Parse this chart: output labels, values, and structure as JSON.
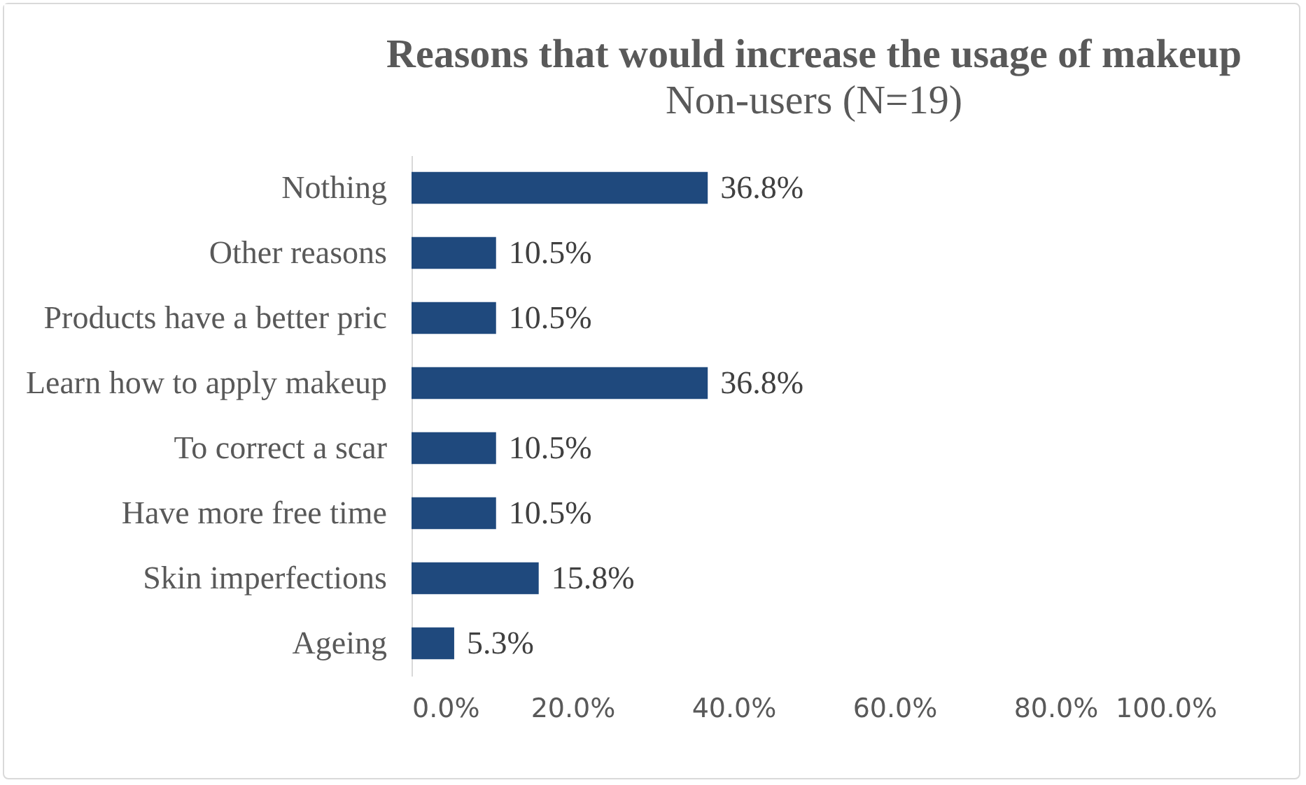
{
  "chart_data": {
    "type": "bar",
    "orientation": "horizontal",
    "title": "Reasons that would increase the usage of makeup",
    "subtitle": "Non-users (N=19)",
    "categories": [
      "Nothing",
      "Other reasons",
      "Products have a better pric",
      "Learn how to apply makeup",
      "To correct a scar",
      "Have more free time",
      "Skin imperfections",
      "Ageing"
    ],
    "values": [
      36.8,
      10.5,
      10.5,
      36.8,
      10.5,
      10.5,
      15.8,
      5.3
    ],
    "value_labels": [
      "36.8%",
      "10.5%",
      "10.5%",
      "36.8%",
      "10.5%",
      "10.5%",
      "15.8%",
      "5.3%"
    ],
    "color": "#1f497d",
    "xlim": [
      0,
      100
    ],
    "xticks": [
      {
        "value": 0,
        "label": "0.0%"
      },
      {
        "value": 20,
        "label": "20.0%"
      },
      {
        "value": 40,
        "label": "40.0%"
      },
      {
        "value": 60,
        "label": "60.0%"
      },
      {
        "value": 80,
        "label": "80.0%"
      },
      {
        "value": 100,
        "label": "100.0%"
      }
    ],
    "grid": false
  }
}
